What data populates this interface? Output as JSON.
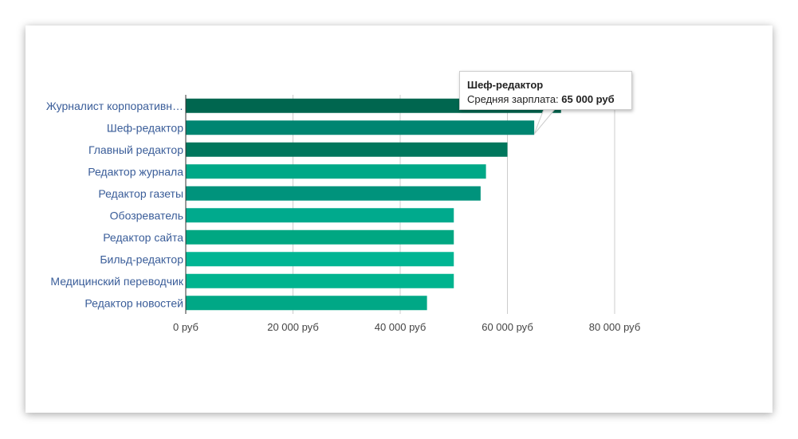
{
  "chart_data": {
    "type": "bar",
    "orientation": "horizontal",
    "categories": [
      "Журналист корпоративн…",
      "Шеф-редактор",
      "Главный редактор",
      "Редактор журнала",
      "Редактор газеты",
      "Обозреватель",
      "Редактор сайта",
      "Бильд-редактор",
      "Медицинский переводчик",
      "Редактор новостей"
    ],
    "values": [
      70000,
      65000,
      60000,
      56000,
      55000,
      50000,
      50000,
      50000,
      50000,
      45000
    ],
    "bar_colors": [
      "#00664f",
      "#008571",
      "#00775d",
      "#00a887",
      "#00937c",
      "#00aa8d",
      "#00a782",
      "#00b593",
      "#00b48f",
      "#00a886"
    ],
    "xlim": [
      0,
      80000
    ],
    "x_ticks": [
      0,
      20000,
      40000,
      60000,
      80000
    ],
    "x_tick_labels": [
      "0 руб",
      "20 000 руб",
      "40 000 руб",
      "60 000 руб",
      "80 000 руб"
    ],
    "grid": true,
    "title": "",
    "xlabel": "",
    "ylabel": ""
  },
  "tooltip": {
    "title": "Шеф-редактор",
    "label": "Средняя зарплата: ",
    "value": "65 000 руб",
    "category_index": 1
  },
  "colors": {
    "label": "#3a5d99",
    "grid": "#cccccc",
    "axis": "#333333"
  }
}
